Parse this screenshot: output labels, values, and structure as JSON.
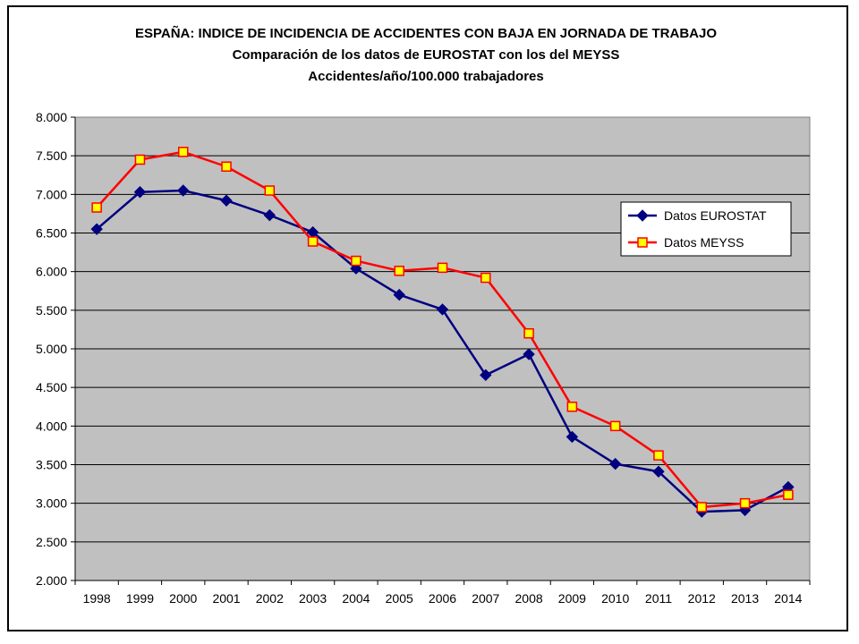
{
  "chart_data": {
    "type": "line",
    "title_lines": [
      "ESPAÑA: INDICE DE INCIDENCIA DE ACCIDENTES CON BAJA EN JORNADA DE TRABAJO",
      "Comparación de los datos de EUROSTAT con los del MEYSS",
      "Accidentes/año/100.000 trabajadores"
    ],
    "xlabel": "",
    "ylabel": "",
    "categories": [
      "1998",
      "1999",
      "2000",
      "2001",
      "2002",
      "2003",
      "2004",
      "2005",
      "2006",
      "2007",
      "2008",
      "2009",
      "2010",
      "2011",
      "2012",
      "2013",
      "2014"
    ],
    "y_ticks": [
      "2.000",
      "2.500",
      "3.000",
      "3.500",
      "4.000",
      "4.500",
      "5.000",
      "5.500",
      "6.000",
      "6.500",
      "7.000",
      "7.500",
      "8.000"
    ],
    "ylim": [
      2000,
      8000
    ],
    "grid": true,
    "plot_background": "#c0c0c0",
    "legend_position": "right",
    "series": [
      {
        "name": "Datos EUROSTAT",
        "color": "#000080",
        "marker": "diamond",
        "values": [
          6550,
          7030,
          7050,
          6920,
          6730,
          6510,
          6040,
          5700,
          5510,
          4660,
          4930,
          3860,
          3510,
          3410,
          2890,
          2910,
          3210
        ]
      },
      {
        "name": "Datos MEYSS",
        "color": "#ff0000",
        "marker": "square",
        "marker_fill": "#ffff00",
        "values": [
          6830,
          7450,
          7550,
          7360,
          7050,
          6390,
          6140,
          6010,
          6050,
          5920,
          5200,
          4250,
          4000,
          3620,
          2950,
          3000,
          3110
        ]
      }
    ]
  }
}
